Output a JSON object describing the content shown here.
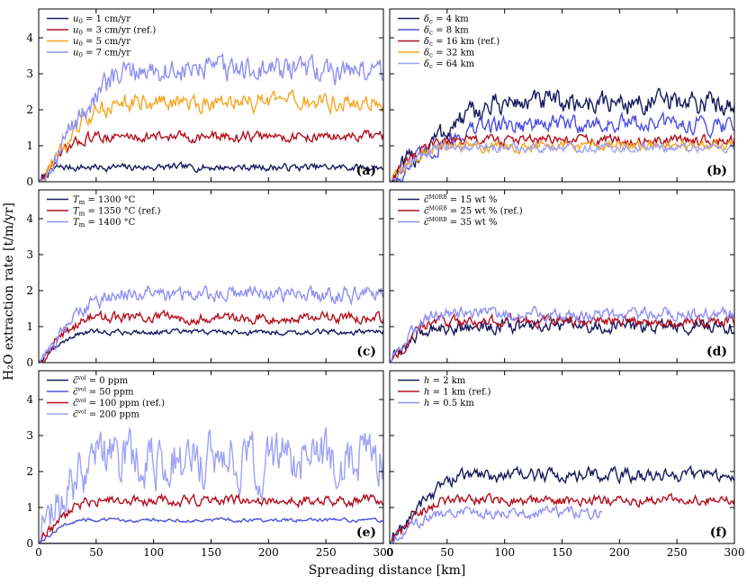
{
  "figure": {
    "ylabel": "H₂O extraction rate [t/m/yr]",
    "xlabel": "Spreading distance [km]",
    "xticks": [
      "0",
      "50",
      "100",
      "150",
      "200",
      "250",
      "300"
    ],
    "yticks": [
      "0",
      "1",
      "2",
      "3",
      "4"
    ]
  },
  "chart_data": [
    {
      "type": "line",
      "panel": "(a)",
      "xlim": [
        0,
        300
      ],
      "ylim": [
        0,
        4.8
      ],
      "xlabel": "Spreading distance [km]",
      "ylabel": "H₂O extraction rate [t/m/yr]",
      "series": [
        {
          "name": "u₀ = 1 cm/yr",
          "color": "#1a1a5e",
          "plateau": 0.4,
          "rise_end": 20,
          "noise": 0.08,
          "end_x": 300
        },
        {
          "name": "u₀ = 3 cm/yr (ref.)",
          "color": "#b3101e",
          "plateau": 1.25,
          "rise_end": 50,
          "noise": 0.12,
          "end_x": 300
        },
        {
          "name": "u₀ = 5 cm/yr",
          "color": "#f5a623",
          "plateau": 2.2,
          "rise_end": 75,
          "noise": 0.2,
          "end_x": 300
        },
        {
          "name": "u₀ = 7 cm/yr",
          "color": "#8f90f2",
          "plateau": 3.1,
          "rise_end": 90,
          "noise": 0.28,
          "end_x": 300
        }
      ]
    },
    {
      "type": "line",
      "panel": "(b)",
      "xlim": [
        0,
        300
      ],
      "ylim": [
        0,
        4.8
      ],
      "xlabel": "Spreading distance [km]",
      "ylabel": "H₂O extraction rate [t/m/yr]",
      "series": [
        {
          "name": "δc = 4 km",
          "color": "#1a1a5e",
          "plateau": 2.2,
          "rise_end": 110,
          "noise": 0.25,
          "end_x": 300
        },
        {
          "name": "δc = 8 km",
          "color": "#5050dd",
          "plateau": 1.6,
          "rise_end": 100,
          "noise": 0.2,
          "end_x": 300
        },
        {
          "name": "δc = 16 km (ref.)",
          "color": "#b3101e",
          "plateau": 1.15,
          "rise_end": 55,
          "noise": 0.12,
          "end_x": 300
        },
        {
          "name": "δc = 32 km",
          "color": "#f5a623",
          "plateau": 1.0,
          "rise_end": 50,
          "noise": 0.12,
          "end_x": 300
        },
        {
          "name": "δc = 64 km",
          "color": "#9fa3f5",
          "plateau": 0.95,
          "rise_end": 50,
          "noise": 0.1,
          "end_x": 300
        }
      ]
    },
    {
      "type": "line",
      "panel": "(c)",
      "xlim": [
        0,
        300
      ],
      "ylim": [
        0,
        4.8
      ],
      "xlabel": "Spreading distance [km]",
      "ylabel": "H₂O extraction rate [t/m/yr]",
      "series": [
        {
          "name": "Tm = 1300 °C",
          "color": "#1a1a5e",
          "plateau": 0.85,
          "rise_end": 45,
          "noise": 0.06,
          "end_x": 300
        },
        {
          "name": "Tm = 1350 °C (ref.)",
          "color": "#b3101e",
          "plateau": 1.25,
          "rise_end": 50,
          "noise": 0.12,
          "end_x": 300
        },
        {
          "name": "Tm = 1400 °C",
          "color": "#8f90f2",
          "plateau": 1.9,
          "rise_end": 70,
          "noise": 0.18,
          "end_x": 300
        }
      ]
    },
    {
      "type": "line",
      "panel": "(d)",
      "xlim": [
        0,
        300
      ],
      "ylim": [
        0,
        4.8
      ],
      "xlabel": "Spreading distance [km]",
      "ylabel": "H₂O extraction rate [t/m/yr]",
      "series": [
        {
          "name": "c̄MORB = 15 wt %",
          "color": "#1a1a5e",
          "plateau": 1.0,
          "rise_end": 45,
          "noise": 0.15,
          "end_x": 300
        },
        {
          "name": "c̄MORB = 25 wt % (ref.)",
          "color": "#b3101e",
          "plateau": 1.15,
          "rise_end": 45,
          "noise": 0.12,
          "end_x": 300
        },
        {
          "name": "c̄MORB = 35 wt %",
          "color": "#8f90f2",
          "plateau": 1.35,
          "rise_end": 45,
          "noise": 0.14,
          "end_x": 300
        }
      ]
    },
    {
      "type": "line",
      "panel": "(e)",
      "xlim": [
        0,
        300
      ],
      "ylim": [
        0,
        4.8
      ],
      "xlabel": "Spreading distance [km]",
      "ylabel": "H₂O extraction rate [t/m/yr]",
      "series": [
        {
          "name": "c̄vol = 0 ppm",
          "color": "#1a1a5e",
          "plateau": 0.0,
          "rise_end": 10,
          "noise": 0.0,
          "end_x": 300
        },
        {
          "name": "c̄vol = 50 ppm",
          "color": "#5050dd",
          "plateau": 0.65,
          "rise_end": 40,
          "noise": 0.04,
          "end_x": 300
        },
        {
          "name": "c̄vol = 100 ppm (ref.)",
          "color": "#b3101e",
          "plateau": 1.2,
          "rise_end": 50,
          "noise": 0.12,
          "end_x": 300
        },
        {
          "name": "c̄vol = 200 ppm",
          "color": "#9fa3f5",
          "plateau": 2.3,
          "rise_end": 60,
          "noise": 0.6,
          "end_x": 300
        }
      ]
    },
    {
      "type": "line",
      "panel": "(f)",
      "xlim": [
        0,
        300
      ],
      "ylim": [
        0,
        4.8
      ],
      "xlabel": "Spreading distance [km]",
      "ylabel": "H₂O extraction rate [t/m/yr]",
      "series": [
        {
          "name": "h = 2 km",
          "color": "#1a1a5e",
          "plateau": 1.9,
          "rise_end": 70,
          "noise": 0.15,
          "end_x": 300
        },
        {
          "name": "h = 1 km (ref.)",
          "color": "#b3101e",
          "plateau": 1.2,
          "rise_end": 55,
          "noise": 0.12,
          "end_x": 300
        },
        {
          "name": "h = 0.5 km",
          "color": "#8f90f2",
          "plateau": 0.85,
          "rise_end": 50,
          "noise": 0.12,
          "end_x": 185
        }
      ]
    }
  ],
  "legends": [
    [
      {
        "pre": "u",
        "sub": "0",
        "post": " = 1 cm/yr"
      },
      {
        "pre": "u",
        "sub": "0",
        "post": " = 3 cm/yr (ref.)"
      },
      {
        "pre": "u",
        "sub": "0",
        "post": " = 5 cm/yr"
      },
      {
        "pre": "u",
        "sub": "0",
        "post": " = 7 cm/yr"
      }
    ],
    [
      {
        "pre": "δ",
        "sub": "c",
        "post": " = 4 km"
      },
      {
        "pre": "δ",
        "sub": "c",
        "post": " = 8 km"
      },
      {
        "pre": "δ",
        "sub": "c",
        "post": " = 16 km (ref.)"
      },
      {
        "pre": "δ",
        "sub": "c",
        "post": " = 32 km"
      },
      {
        "pre": "δ",
        "sub": "c",
        "post": " = 64 km"
      }
    ],
    [
      {
        "pre": "T",
        "sub": "m",
        "post": " = 1300 °C"
      },
      {
        "pre": "T",
        "sub": "m",
        "post": " = 1350 °C (ref.)"
      },
      {
        "pre": "T",
        "sub": "m",
        "post": " = 1400 °C"
      }
    ],
    [
      {
        "pre": "c̄",
        "sup": "MORB",
        "post": " = 15 wt %"
      },
      {
        "pre": "c̄",
        "sup": "MORB",
        "post": " = 25 wt % (ref.)"
      },
      {
        "pre": "c̄",
        "sup": "MORB",
        "post": " = 35 wt %"
      }
    ],
    [
      {
        "pre": "c̄",
        "sup": "vol",
        "post": " = 0 ppm"
      },
      {
        "pre": "c̄",
        "sup": "vol",
        "post": " = 50 ppm"
      },
      {
        "pre": "c̄",
        "sup": "vol",
        "post": " = 100 ppm (ref.)"
      },
      {
        "pre": "c̄",
        "sup": "vol",
        "post": " = 200 ppm"
      }
    ],
    [
      {
        "pre": "h",
        "post": " = 2 km"
      },
      {
        "pre": "h",
        "post": " = 1 km (ref.)"
      },
      {
        "pre": "h",
        "post": " = 0.5 km"
      }
    ]
  ]
}
